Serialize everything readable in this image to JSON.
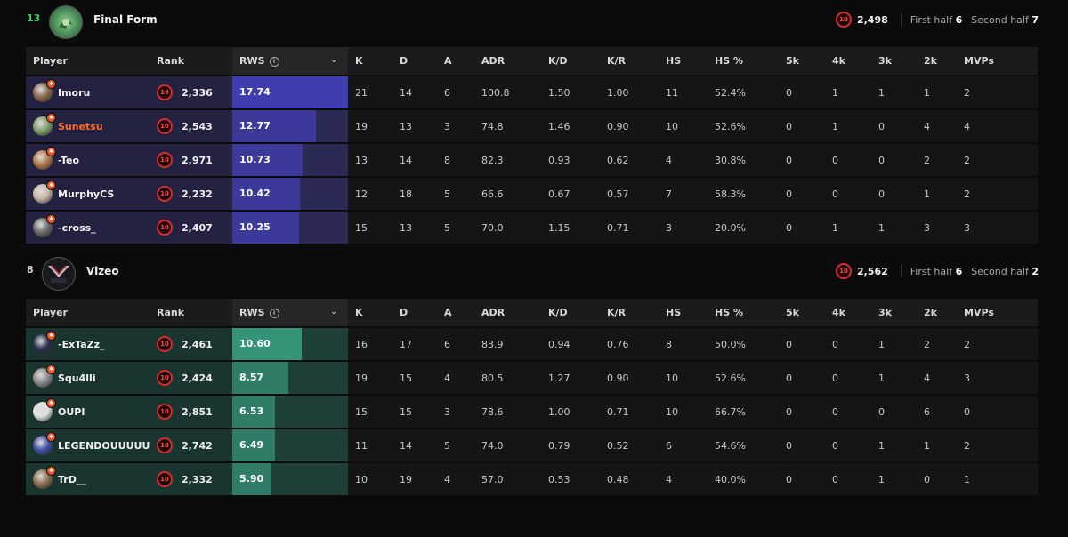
{
  "teams": [
    {
      "score": "13",
      "score_color": "#3ecf6e",
      "name": "Final Form",
      "elo": "2,498",
      "first_half_label": "First half",
      "first_half": "6",
      "second_half_label": "Second half",
      "second_half": "7",
      "theme": "purple",
      "players": [
        {
          "name": "Imoru",
          "rank_elo": "2,336",
          "rws": "17.74",
          "rws_value": 17.74,
          "k": "21",
          "d": "14",
          "a": "6",
          "adr": "100.8",
          "kd": "1.50",
          "kr": "1.00",
          "hs": "11",
          "hsp": "52.4%",
          "k5": "0",
          "k4": "1",
          "k3": "1",
          "k2": "1",
          "mvps": "2",
          "highlight": false,
          "avatar_color": "#8a6a50"
        },
        {
          "name": "Sunetsu",
          "rank_elo": "2,543",
          "rws": "12.77",
          "rws_value": 12.77,
          "k": "19",
          "d": "13",
          "a": "3",
          "adr": "74.8",
          "kd": "1.46",
          "kr": "0.90",
          "hs": "10",
          "hsp": "52.6%",
          "k5": "0",
          "k4": "1",
          "k3": "0",
          "k2": "4",
          "mvps": "4",
          "highlight": true,
          "avatar_color": "#7fa06a"
        },
        {
          "name": "-Teo",
          "rank_elo": "2,971",
          "rws": "10.73",
          "rws_value": 10.73,
          "k": "13",
          "d": "14",
          "a": "8",
          "adr": "82.3",
          "kd": "0.93",
          "kr": "0.62",
          "hs": "4",
          "hsp": "30.8%",
          "k5": "0",
          "k4": "0",
          "k3": "0",
          "k2": "2",
          "mvps": "2",
          "highlight": false,
          "avatar_color": "#b07a4a"
        },
        {
          "name": "MurphyCS",
          "rank_elo": "2,232",
          "rws": "10.42",
          "rws_value": 10.42,
          "k": "12",
          "d": "18",
          "a": "5",
          "adr": "66.6",
          "kd": "0.67",
          "kr": "0.57",
          "hs": "7",
          "hsp": "58.3%",
          "k5": "0",
          "k4": "0",
          "k3": "0",
          "k2": "1",
          "mvps": "2",
          "highlight": false,
          "avatar_color": "#c8b8a8"
        },
        {
          "name": "-cross_",
          "rank_elo": "2,407",
          "rws": "10.25",
          "rws_value": 10.25,
          "k": "15",
          "d": "13",
          "a": "5",
          "adr": "70.0",
          "kd": "1.15",
          "kr": "0.71",
          "hs": "3",
          "hsp": "20.0%",
          "k5": "0",
          "k4": "1",
          "k3": "1",
          "k2": "3",
          "mvps": "3",
          "highlight": false,
          "avatar_color": "#6a6a6a"
        }
      ]
    },
    {
      "score": "8",
      "score_color": "#cccccc",
      "name": "Vizeo",
      "elo": "2,562",
      "first_half_label": "First half",
      "first_half": "6",
      "second_half_label": "Second half",
      "second_half": "2",
      "theme": "green",
      "players": [
        {
          "name": "-ExTaZz_",
          "rank_elo": "2,461",
          "rws": "10.60",
          "rws_value": 10.6,
          "k": "16",
          "d": "17",
          "a": "6",
          "adr": "83.9",
          "kd": "0.94",
          "kr": "0.76",
          "hs": "8",
          "hsp": "50.0%",
          "k5": "0",
          "k4": "0",
          "k3": "1",
          "k2": "2",
          "mvps": "2",
          "highlight": false,
          "avatar_color": "#2a3050"
        },
        {
          "name": "Squ4lli",
          "rank_elo": "2,424",
          "rws": "8.57",
          "rws_value": 8.57,
          "k": "19",
          "d": "15",
          "a": "4",
          "adr": "80.5",
          "kd": "1.27",
          "kr": "0.90",
          "hs": "10",
          "hsp": "52.6%",
          "k5": "0",
          "k4": "0",
          "k3": "1",
          "k2": "4",
          "mvps": "3",
          "highlight": false,
          "avatar_color": "#8a8a8a"
        },
        {
          "name": "OUPI",
          "rank_elo": "2,851",
          "rws": "6.53",
          "rws_value": 6.53,
          "k": "15",
          "d": "15",
          "a": "3",
          "adr": "78.6",
          "kd": "1.00",
          "kr": "0.71",
          "hs": "10",
          "hsp": "66.7%",
          "k5": "0",
          "k4": "0",
          "k3": "0",
          "k2": "6",
          "mvps": "0",
          "highlight": false,
          "avatar_color": "#e0e0e0"
        },
        {
          "name": "LEGENDOUUUUU",
          "rank_elo": "2,742",
          "rws": "6.49",
          "rws_value": 6.49,
          "k": "11",
          "d": "14",
          "a": "5",
          "adr": "74.0",
          "kd": "0.79",
          "kr": "0.52",
          "hs": "6",
          "hsp": "54.6%",
          "k5": "0",
          "k4": "0",
          "k3": "1",
          "k2": "1",
          "mvps": "2",
          "highlight": false,
          "avatar_color": "#4050a0"
        },
        {
          "name": "TrD__",
          "rank_elo": "2,332",
          "rws": "5.90",
          "rws_value": 5.9,
          "k": "10",
          "d": "19",
          "a": "4",
          "adr": "57.0",
          "kd": "0.53",
          "kr": "0.48",
          "hs": "4",
          "hsp": "40.0%",
          "k5": "0",
          "k4": "0",
          "k3": "1",
          "k2": "0",
          "mvps": "1",
          "highlight": false,
          "avatar_color": "#8a7050"
        }
      ]
    }
  ],
  "columns": {
    "player": "Player",
    "rank": "Rank",
    "rws": "RWS",
    "k": "K",
    "d": "D",
    "a": "A",
    "adr": "ADR",
    "kd": "K/D",
    "kr": "K/R",
    "hs": "HS",
    "hsp": "HS %",
    "k5": "5k",
    "k4": "4k",
    "k3": "3k",
    "k2": "2k",
    "mvps": "MVPs"
  },
  "rws_max": 17.74,
  "icons": {
    "rank": "skill-level-10-icon",
    "info": "info-icon",
    "sort": "chevron-down-icon",
    "logo_a": "final-form-logo",
    "logo_b": "vizeo-logo"
  }
}
